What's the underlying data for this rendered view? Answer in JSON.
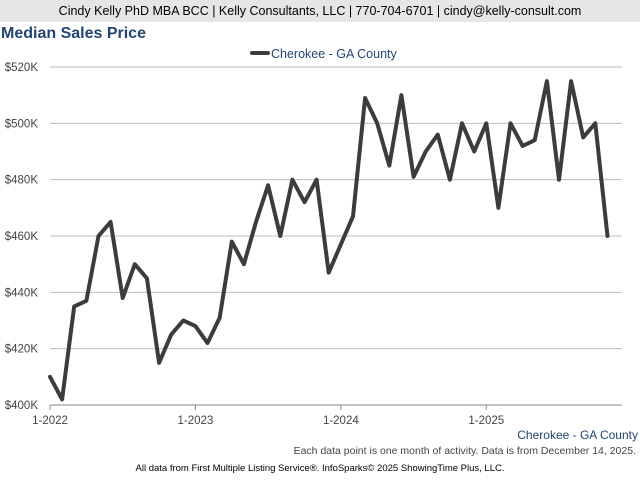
{
  "header": {
    "contact": "Cindy Kelly PhD MBA BCC | Kelly Consultants, LLC | 770-704-6701 | cindy@kelly-consult.com"
  },
  "chart_title": "Median Sales Price",
  "chart_data": {
    "type": "line",
    "title": "Median Sales Price",
    "xlabel": "",
    "ylabel": "",
    "ylim": [
      400000,
      520000
    ],
    "yticks": [
      400000,
      420000,
      440000,
      460000,
      480000,
      500000,
      520000
    ],
    "ytick_labels": [
      "$400K",
      "$420K",
      "$440K",
      "$460K",
      "$480K",
      "$500K",
      "$520K"
    ],
    "xticks": [
      0,
      12,
      24,
      36
    ],
    "xtick_labels": [
      "1-2022",
      "1-2023",
      "1-2024",
      "1-2025"
    ],
    "x": [
      0,
      1,
      2,
      3,
      4,
      5,
      6,
      7,
      8,
      9,
      10,
      11,
      12,
      13,
      14,
      15,
      16,
      17,
      18,
      19,
      20,
      21,
      22,
      23,
      24,
      25,
      26,
      27,
      28,
      29,
      30,
      31,
      32,
      33,
      34,
      35,
      36,
      37,
      38,
      39,
      40,
      41,
      42,
      43,
      44,
      45,
      46
    ],
    "series": [
      {
        "name": "Cherokee - GA County",
        "color": "#3c3c3c",
        "values": [
          410000,
          402000,
          435000,
          437000,
          460000,
          465000,
          438000,
          450000,
          445000,
          415000,
          425000,
          430000,
          428000,
          422000,
          431000,
          458000,
          450000,
          465000,
          478000,
          460000,
          480000,
          472000,
          480000,
          447000,
          457000,
          467000,
          509000,
          500000,
          485000,
          510000,
          481000,
          490000,
          496000,
          480000,
          500000,
          490000,
          500000,
          470000,
          500000,
          492000,
          494000,
          515000,
          480000,
          515000,
          495000,
          500000,
          460000
        ]
      }
    ],
    "legend_position": "top-center",
    "grid": true
  },
  "series_label": "Cherokee - GA County",
  "footer": {
    "note": "Each data point is one month of activity. Data is from December 14, 2025.",
    "credit": "All data from First Multiple Listing Service®. InfoSparks© 2025 ShowingTime Plus, LLC."
  }
}
